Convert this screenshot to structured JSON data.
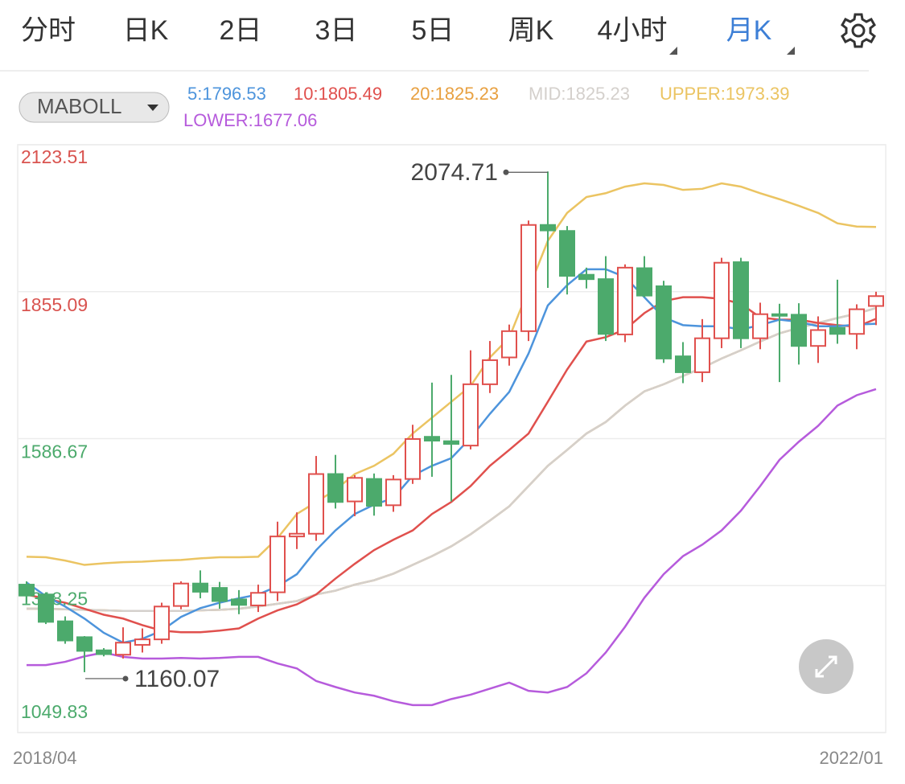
{
  "tabs": [
    "分时",
    "日K",
    "2日",
    "3日",
    "5日",
    "周K",
    "4小时",
    "月K"
  ],
  "active_tab": "月K",
  "indicator_menu": "MABOLL",
  "chart_data": {
    "type": "candlestick",
    "categories": [
      "2018/04",
      null,
      null,
      null,
      null,
      null,
      null,
      null,
      null,
      null,
      null,
      null,
      null,
      null,
      null,
      null,
      null,
      null,
      null,
      null,
      null,
      null,
      null,
      null,
      null,
      null,
      null,
      null,
      null,
      null,
      null,
      null,
      null,
      null,
      null,
      null,
      null,
      null,
      null,
      null,
      null,
      null,
      null,
      null,
      "2022/01"
    ],
    "open": [
      1320,
      1302,
      1253,
      1224,
      1200,
      1192,
      1210,
      1220,
      1281,
      1322,
      1314,
      1293,
      1282,
      1306,
      1408,
      1413,
      1522,
      1472,
      1513,
      1465,
      1513,
      1590,
      1582,
      1574,
      1686,
      1735,
      1783,
      1977,
      1966,
      1886,
      1878,
      1777,
      1898,
      1865,
      1737,
      1708,
      1770,
      1909,
      1770,
      1814,
      1813,
      1756,
      1789,
      1778,
      1829
    ],
    "high": [
      1326,
      1306,
      1262,
      1226,
      1204,
      1242,
      1240,
      1287,
      1326,
      1346,
      1325,
      1310,
      1320,
      1435,
      1452,
      1555,
      1557,
      1520,
      1523,
      1520,
      1612,
      1689,
      1703,
      1748,
      1765,
      1795,
      1985,
      2074.71,
      1975,
      1899,
      1920,
      1905,
      1920,
      1875,
      1763,
      1805,
      1917,
      1917,
      1835,
      1833,
      1834,
      1810,
      1877,
      1832,
      1855
    ],
    "low": [
      1288,
      1248,
      1212,
      1160.07,
      1189,
      1185,
      1196,
      1212,
      1275,
      1295,
      1276,
      1266,
      1270,
      1290,
      1385,
      1400,
      1459,
      1445,
      1446,
      1453,
      1504,
      1517,
      1472,
      1567,
      1670,
      1720,
      1765,
      1862,
      1850,
      1861,
      1765,
      1763,
      1845,
      1725,
      1688,
      1690,
      1752,
      1752,
      1750,
      1690,
      1722,
      1725,
      1760,
      1750,
      1794
    ],
    "close": [
      1300,
      1252,
      1218,
      1199,
      1193,
      1214,
      1220,
      1280,
      1322,
      1307,
      1290,
      1283,
      1305,
      1408,
      1413,
      1522,
      1471,
      1515,
      1464,
      1512,
      1586,
      1583,
      1577,
      1686,
      1730,
      1783,
      1977,
      1967,
      1884,
      1878,
      1778,
      1899,
      1848,
      1733,
      1708,
      1770,
      1908,
      1770,
      1814,
      1812,
      1756,
      1785,
      1778,
      1823,
      1847
    ],
    "up_color": "#e0504d",
    "down_color": "#4caa6c",
    "series": [
      {
        "name": "20:1825.23",
        "color": "#e8a040",
        "values": [
          1276,
          1276,
          1275,
          1274,
          1273,
          1272,
          1272,
          1272,
          1272,
          1273,
          1274,
          1276,
          1280,
          1285,
          1290,
          1302,
          1309,
          1320,
          1328,
          1340,
          1356,
          1372,
          1390,
          1412,
          1437,
          1463,
          1500,
          1537,
          1566,
          1596,
          1617,
          1647,
          1673,
          1686,
          1701,
          1716,
          1733,
          1748,
          1764,
          1779,
          1789,
          1798,
          1807,
          1815,
          1825.23
        ]
      },
      {
        "name": "MID:1825.23",
        "color": "#d4d0cc",
        "values": [
          1276,
          1276,
          1275,
          1274,
          1273,
          1272,
          1272,
          1272,
          1272,
          1273,
          1274,
          1276,
          1280,
          1285,
          1290,
          1302,
          1309,
          1320,
          1328,
          1340,
          1356,
          1372,
          1390,
          1412,
          1437,
          1463,
          1500,
          1537,
          1566,
          1596,
          1617,
          1647,
          1673,
          1686,
          1701,
          1716,
          1733,
          1748,
          1764,
          1779,
          1789,
          1798,
          1807,
          1815,
          1825.23
        ]
      },
      {
        "name": "UPPER:1973.39",
        "color": "#ebc462",
        "values": [
          1371,
          1370,
          1364,
          1356,
          1359,
          1361,
          1362,
          1364,
          1365,
          1368,
          1370,
          1370,
          1371,
          1405,
          1449,
          1471,
          1493,
          1522,
          1537,
          1559,
          1596,
          1625,
          1654,
          1683,
          1735,
          1771,
          1859,
          1948,
          1999,
          2028,
          2035,
          2047,
          2053,
          2050,
          2041,
          2043,
          2053,
          2047,
          2035,
          2024,
          2012,
          1999,
          1980,
          1974,
          1973.39
        ]
      },
      {
        "name": "LOWER:1677.06",
        "color": "#b65bdc",
        "values": [
          1173,
          1173,
          1179,
          1189,
          1196,
          1188,
          1185,
          1185,
          1186,
          1185,
          1186,
          1188,
          1188,
          1176,
          1167,
          1144,
          1133,
          1123,
          1117,
          1107,
          1100,
          1100,
          1111,
          1119,
          1130,
          1141,
          1126,
          1123,
          1133,
          1158,
          1196,
          1243,
          1296,
          1339,
          1372,
          1393,
          1419,
          1455,
          1500,
          1548,
          1581,
          1610,
          1647,
          1666,
          1677.06
        ]
      },
      {
        "name": "10:1805.49",
        "color": "#e0504d",
        "values": [
          1302,
          1294,
          1287,
          1276,
          1265,
          1258,
          1246,
          1236,
          1233,
          1233,
          1236,
          1240,
          1258,
          1273,
          1284,
          1302,
          1331,
          1358,
          1383,
          1402,
          1419,
          1449,
          1471,
          1500,
          1537,
          1566,
          1596,
          1654,
          1713,
          1764,
          1772,
          1786,
          1816,
          1838,
          1845,
          1845,
          1842,
          1833,
          1808,
          1804,
          1804,
          1798,
          1794,
          1791,
          1805.49
        ]
      },
      {
        "name": "5:1796.53",
        "color": "#4d94dc",
        "values": [
          1324,
          1299,
          1280,
          1258,
          1232,
          1214,
          1221,
          1236,
          1261,
          1277,
          1287,
          1295,
          1302,
          1317,
          1339,
          1383,
          1419,
          1449,
          1466,
          1478,
          1519,
          1537,
          1551,
          1588,
          1632,
          1672,
          1742,
          1830,
          1867,
          1896,
          1896,
          1882,
          1845,
          1808,
          1794,
          1792,
          1792,
          1786,
          1794,
          1804,
          1800,
          1792,
          1792,
          1795,
          1796.53
        ]
      }
    ],
    "ylim": [
      1049.83,
      2123.51
    ],
    "yticks": [
      2123.51,
      1855.09,
      1586.67,
      1318.25,
      1049.83
    ],
    "grid": true
  }
}
